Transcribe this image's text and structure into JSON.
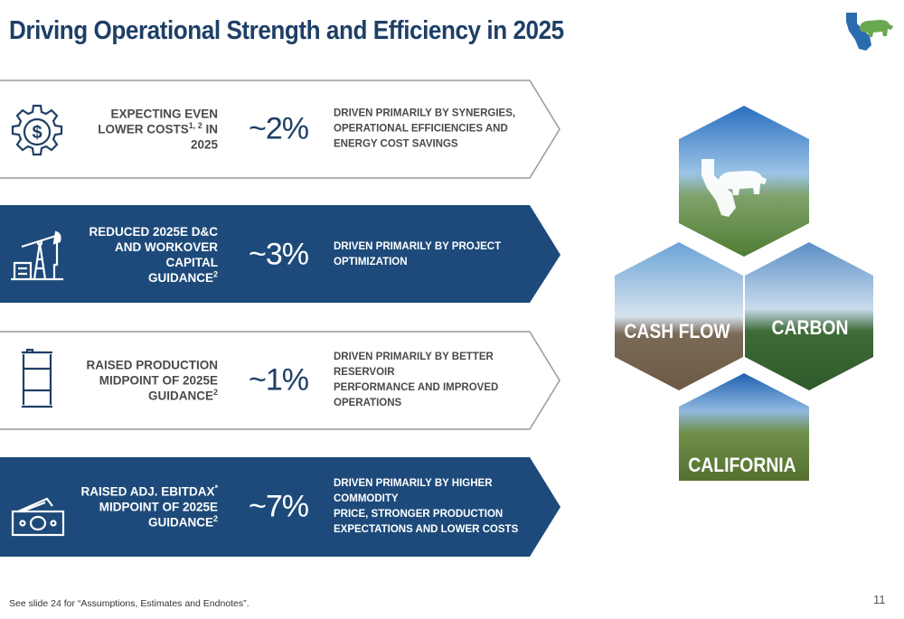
{
  "title": "Driving Operational Strength and Efficiency in 2025",
  "rows": [
    {
      "label_lines": [
        "EXPECTING EVEN",
        "LOWER COSTS"
      ],
      "label_sup": "1, 2",
      "label_suffix": " IN 2025",
      "value": "~2%",
      "desc_lines": [
        "DRIVEN PRIMARILY BY SYNERGIES,",
        "OPERATIONAL EFFICIENCIES AND",
        "ENERGY COST SAVINGS"
      ],
      "icon": "gear-dollar-icon"
    },
    {
      "label_lines": [
        "REDUCED 2025E D&C",
        "AND WORKOVER CAPITAL",
        "GUIDANCE"
      ],
      "label_sup": "2",
      "value": "~3%",
      "desc_lines": [
        "DRIVEN PRIMARILY BY PROJECT",
        "OPTIMIZATION"
      ],
      "icon": "pumpjack-icon"
    },
    {
      "label_lines": [
        "RAISED PRODUCTION",
        "MIDPOINT OF 2025E",
        "GUIDANCE"
      ],
      "label_sup": "2",
      "value": "~1%",
      "desc_lines": [
        "DRIVEN PRIMARILY BY BETTER RESERVOIR",
        "PERFORMANCE AND IMPROVED OPERATIONS"
      ],
      "icon": "oil-barrel-icon"
    },
    {
      "label_lines": [
        "RAISED ADJ. EBITDAX",
        "MIDPOINT OF 2025E",
        "GUIDANCE"
      ],
      "label_sup_first": "*",
      "label_sup": "2",
      "value": "~7%",
      "desc_lines": [
        "DRIVEN PRIMARILY BY HIGHER COMMODITY",
        "PRICE, STRONGER PRODUCTION",
        "EXPECTATIONS AND LOWER COSTS"
      ],
      "icon": "cash-bills-icon"
    }
  ],
  "hexagons": {
    "cash_flow": "CASH FLOW",
    "carbon": "CARBON",
    "california": "CALIFORNIA"
  },
  "footnote": "See slide 24 for “Assumptions, Estimates and Endnotes”.",
  "page_number": "11",
  "colors": {
    "navy": "#1d4a7a",
    "title": "#1e3f66",
    "outline": "#9a9a9a"
  }
}
